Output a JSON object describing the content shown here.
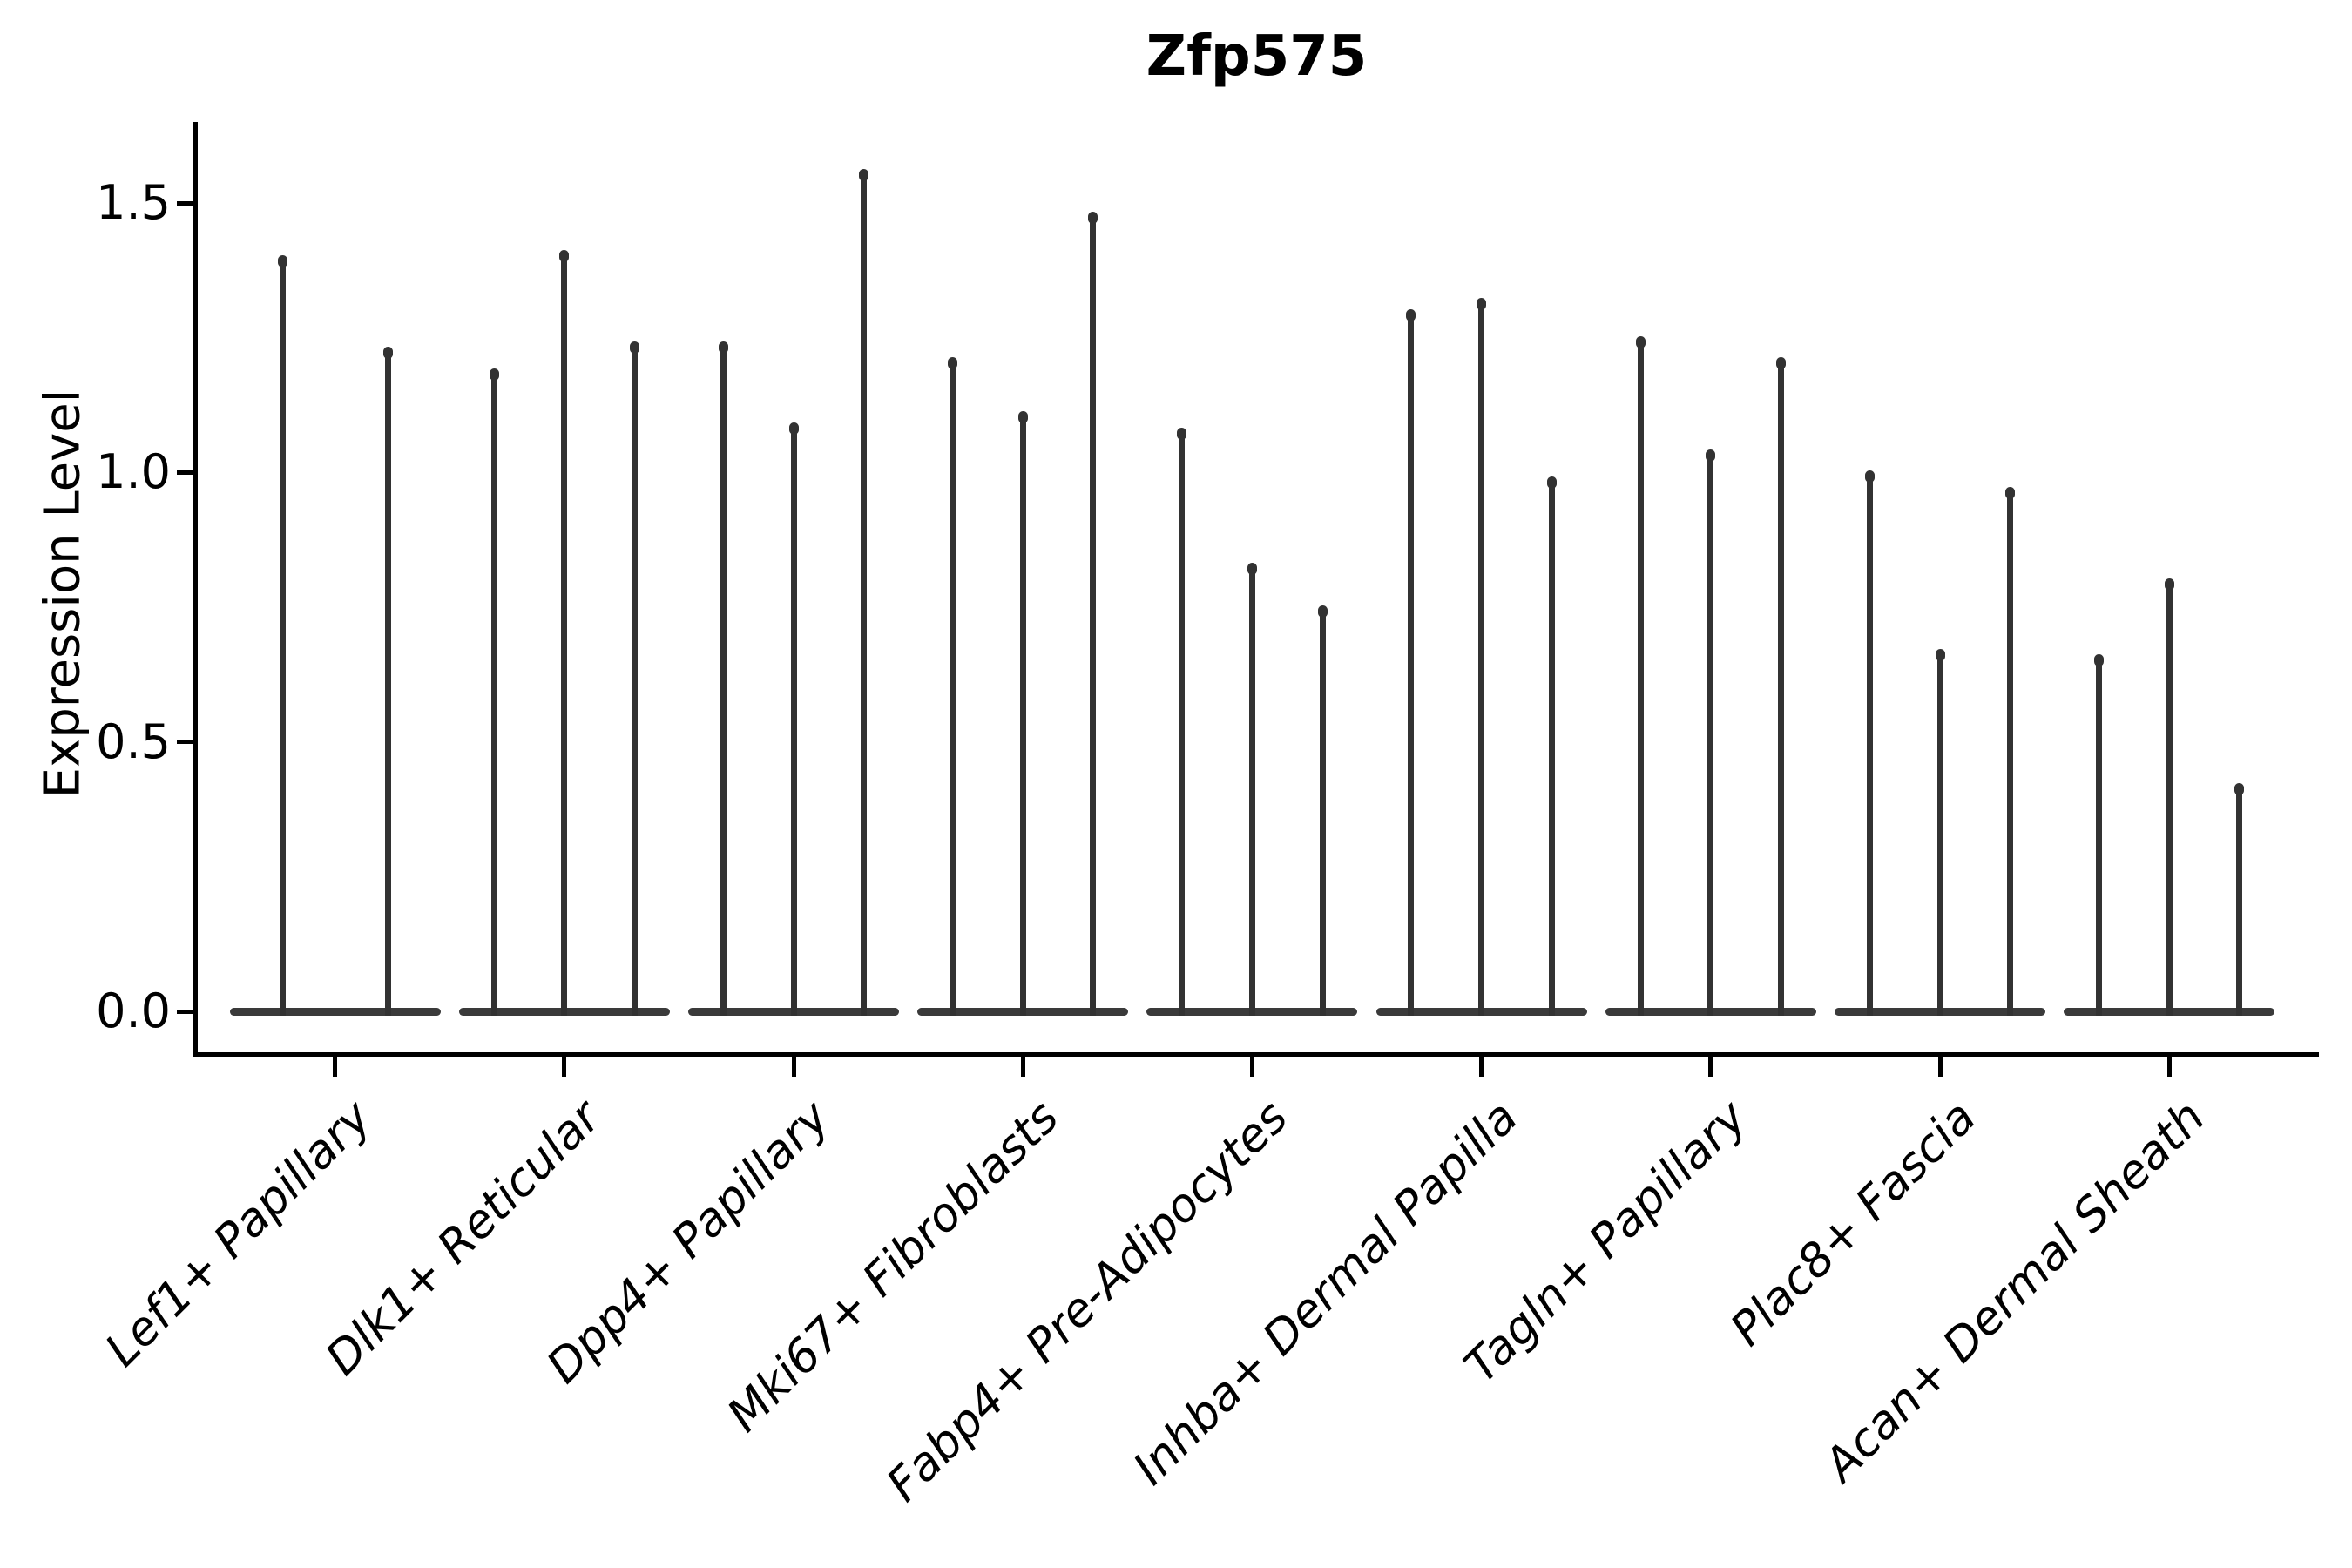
{
  "figure": {
    "title": "Zfp575",
    "y_axis": {
      "label": "Expression Level",
      "tick_labels": [
        "0.0",
        "0.5",
        "1.0",
        "1.5"
      ],
      "tick_values": [
        0.0,
        0.5,
        1.0,
        1.5
      ]
    },
    "x_axis": {
      "categories": [
        "Lef1+ Papillary",
        "Dlk1+ Reticular",
        "Dpp4+ Papillary",
        "Mki67+ Fibroblasts",
        "Fabp4+ Pre-Adipocytes",
        "Inhba+ Dermal Papilla",
        "Tagln+ Papillary",
        "Plac8+ Fascia",
        "Acan+ Dermal Sheath"
      ]
    },
    "colors": {
      "violin": "#323232",
      "violin_base": "#3a3a3a",
      "ink": "#000000",
      "background": "#ffffff"
    }
  },
  "chart_data": {
    "type": "violin",
    "title": "Zfp575",
    "xlabel": "",
    "ylabel": "Expression Level",
    "ylim": [
      0,
      1.73
    ],
    "yticks": [
      0.0,
      0.5,
      1.0,
      1.5
    ],
    "grid": false,
    "legend": "none",
    "categories": [
      "Lef1+ Papillary",
      "Dlk1+ Reticular",
      "Dpp4+ Papillary",
      "Mki67+ Fibroblasts",
      "Fabp4+ Pre-Adipocytes",
      "Inhba+ Dermal Papilla",
      "Tagln+ Papillary",
      "Plac8+ Fascia",
      "Acan+ Dermal Sheath"
    ],
    "violin_max_values": [
      [
        1.4,
        1.23
      ],
      [
        1.19,
        1.41,
        1.24
      ],
      [
        1.24,
        1.09,
        1.56
      ],
      [
        1.21,
        1.11,
        1.48
      ],
      [
        1.08,
        0.83,
        0.75
      ],
      [
        1.3,
        1.32,
        0.99
      ],
      [
        1.25,
        1.04,
        1.21
      ],
      [
        1.0,
        0.67,
        0.97
      ],
      [
        0.66,
        0.8,
        0.42
      ]
    ],
    "shape_note": "Needle-thin violins: almost all density sits in a flat pancake at expression 0; a thin spike rises to the listed maximum expression value for each violin."
  }
}
